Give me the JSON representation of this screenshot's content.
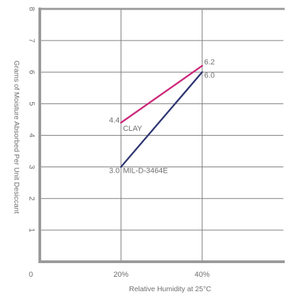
{
  "chart_data": {
    "type": "line",
    "title": "",
    "xlabel": "Relative Humidity at 25°C",
    "ylabel": "Grams of Moisture Absorbed Per Unit Desiccant",
    "x_ticks": [
      {
        "value": 0,
        "label": "0"
      },
      {
        "value": 20,
        "label": "20%"
      },
      {
        "value": 40,
        "label": "40%"
      }
    ],
    "y_ticks": [
      1,
      2,
      3,
      4,
      5,
      6,
      7,
      8
    ],
    "xlim": [
      0,
      60
    ],
    "ylim": [
      0,
      8
    ],
    "grid": true,
    "series": [
      {
        "name": "CLAY",
        "color": "#cc2a7a",
        "points": [
          {
            "x": 20,
            "y": 4.4,
            "label": "4.4"
          },
          {
            "x": 40,
            "y": 6.2,
            "label": "6.2"
          }
        ]
      },
      {
        "name": "MIL-D-3464E",
        "color": "#2e3672",
        "points": [
          {
            "x": 20,
            "y": 3.0,
            "label": "3.0"
          },
          {
            "x": 40,
            "y": 6.0,
            "label": "6.0"
          }
        ]
      }
    ],
    "colors": {
      "frame": "#9a9a9a",
      "grid": "#7a7a7a",
      "text": "#6e6e6e"
    }
  }
}
